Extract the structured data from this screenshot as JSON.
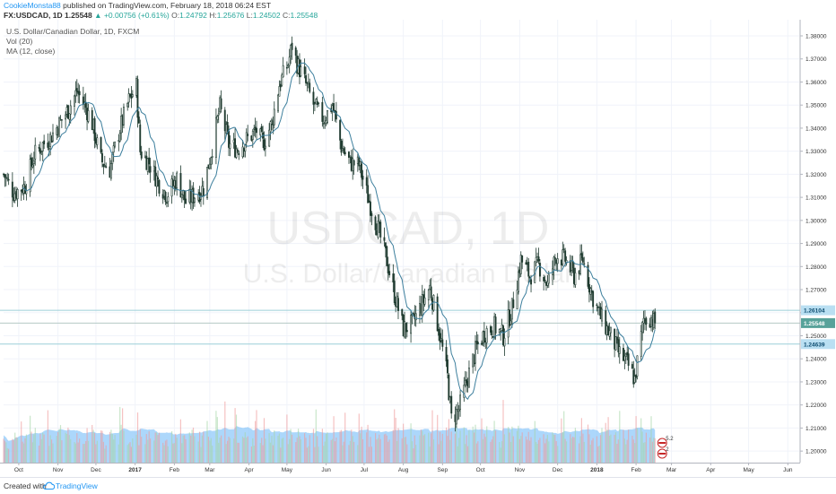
{
  "header": {
    "author": "CookieMonsta88",
    "published_text": " published on TradingView.com, February 18, 2018 06:24 EST",
    "symbol": "FX:USDCAD, 1D",
    "last": "1.25548",
    "change_arrow": "▲",
    "change": "+0.00756 (+0.61%)",
    "o_label": "O:",
    "o_value": "1.24792",
    "h_label": "H:",
    "h_value": "1.25676",
    "l_label": "L:",
    "l_value": "1.24502",
    "c_label": "C:",
    "c_value": "1.25548"
  },
  "legend": {
    "title": "U.S. Dollar/Canadian Dollar, 1D, FXCM",
    "vol": "Vol (20)",
    "ma": "MA (12, close)"
  },
  "watermark": {
    "symbol": "USDCAD, 1D",
    "name": "U.S. Dollar/Canadian Dollar"
  },
  "footer": {
    "created_with": "Created with",
    "brand": "TradingView"
  },
  "colors": {
    "up": "#26a69a",
    "down": "#ef5350",
    "candle_body": "#1e3a2f",
    "candle_up_body": "#ffffff",
    "ma": "#3d7f9d",
    "volume_area": "#90caf9",
    "volume_bar_up": "#a5d6a7",
    "volume_bar_down": "#ef9a9a",
    "hline": "#80cbc4",
    "label_cur": "#58a29a",
    "label_line": "#64b5f6"
  },
  "chart_data": {
    "type": "candlestick",
    "title": "U.S. Dollar/Canadian Dollar, 1D, FXCM",
    "y_axis": {
      "ticks": [
        "1.20000",
        "1.21000",
        "1.22000",
        "1.23000",
        "1.24000",
        "1.25000",
        "1.26000",
        "1.27000",
        "1.28000",
        "1.29000",
        "1.30000",
        "1.31000",
        "1.32000",
        "1.33000",
        "1.34000",
        "1.35000",
        "1.36000",
        "1.37000",
        "1.38000"
      ],
      "range": [
        1.195,
        1.387
      ]
    },
    "x_axis": {
      "ticks": [
        "Oct",
        "Nov",
        "Dec",
        "2017",
        "Feb",
        "Mar",
        "Apr",
        "May",
        "Jun",
        "Jul",
        "Aug",
        "Sep",
        "Oct",
        "Nov",
        "Dec",
        "2018",
        "Feb",
        "Mar",
        "Apr",
        "May",
        "Jun"
      ],
      "date_range": [
        "2016-09-19",
        "2018-06-10"
      ]
    },
    "price_labels": [
      "1.26104",
      "1.25548",
      "1.24639"
    ],
    "horizontal_lines": [
      1.26104,
      1.25548,
      1.24639
    ],
    "ma_period": 12,
    "volume_period": 20,
    "price_path": [
      [
        "2016-09-19",
        1.32
      ],
      [
        "2016-09-27",
        1.312
      ],
      [
        "2016-10-06",
        1.315
      ],
      [
        "2016-10-13",
        1.328
      ],
      [
        "2016-10-20",
        1.333
      ],
      [
        "2016-10-26",
        1.336
      ],
      [
        "2016-11-01",
        1.341
      ],
      [
        "2016-11-09",
        1.348
      ],
      [
        "2016-11-16",
        1.356
      ],
      [
        "2016-11-23",
        1.349
      ],
      [
        "2016-11-28",
        1.342
      ],
      [
        "2016-12-05",
        1.326
      ],
      [
        "2016-12-12",
        1.322
      ],
      [
        "2016-12-19",
        1.338
      ],
      [
        "2016-12-27",
        1.352
      ],
      [
        "2017-01-02",
        1.358
      ],
      [
        "2017-01-05",
        1.33
      ],
      [
        "2017-01-12",
        1.325
      ],
      [
        "2017-01-19",
        1.317
      ],
      [
        "2017-01-26",
        1.311
      ],
      [
        "2017-02-03",
        1.318
      ],
      [
        "2017-02-10",
        1.308
      ],
      [
        "2017-02-17",
        1.311
      ],
      [
        "2017-02-24",
        1.314
      ],
      [
        "2017-03-03",
        1.332
      ],
      [
        "2017-03-09",
        1.349
      ],
      [
        "2017-03-16",
        1.333
      ],
      [
        "2017-03-23",
        1.331
      ],
      [
        "2017-03-30",
        1.335
      ],
      [
        "2017-04-07",
        1.339
      ],
      [
        "2017-04-12",
        1.333
      ],
      [
        "2017-04-19",
        1.342
      ],
      [
        "2017-04-25",
        1.359
      ],
      [
        "2017-05-02",
        1.368
      ],
      [
        "2017-05-05",
        1.376
      ],
      [
        "2017-05-09",
        1.368
      ],
      [
        "2017-05-16",
        1.359
      ],
      [
        "2017-05-23",
        1.349
      ],
      [
        "2017-05-30",
        1.344
      ],
      [
        "2017-06-06",
        1.35
      ],
      [
        "2017-06-13",
        1.332
      ],
      [
        "2017-06-20",
        1.325
      ],
      [
        "2017-06-27",
        1.324
      ],
      [
        "2017-07-04",
        1.31
      ],
      [
        "2017-07-11",
        1.298
      ],
      [
        "2017-07-18",
        1.285
      ],
      [
        "2017-07-25",
        1.268
      ],
      [
        "2017-08-01",
        1.253
      ],
      [
        "2017-08-08",
        1.255
      ],
      [
        "2017-08-15",
        1.263
      ],
      [
        "2017-08-22",
        1.271
      ],
      [
        "2017-08-29",
        1.253
      ],
      [
        "2017-09-05",
        1.232
      ],
      [
        "2017-09-08",
        1.214
      ],
      [
        "2017-09-14",
        1.218
      ],
      [
        "2017-09-21",
        1.232
      ],
      [
        "2017-09-28",
        1.245
      ],
      [
        "2017-10-05",
        1.252
      ],
      [
        "2017-10-12",
        1.254
      ],
      [
        "2017-10-19",
        1.25
      ],
      [
        "2017-10-26",
        1.262
      ],
      [
        "2017-11-02",
        1.283
      ],
      [
        "2017-11-09",
        1.276
      ],
      [
        "2017-11-16",
        1.281
      ],
      [
        "2017-11-23",
        1.272
      ],
      [
        "2017-11-30",
        1.285
      ],
      [
        "2017-12-07",
        1.283
      ],
      [
        "2017-12-14",
        1.276
      ],
      [
        "2017-12-21",
        1.283
      ],
      [
        "2017-12-28",
        1.268
      ],
      [
        "2018-01-04",
        1.258
      ],
      [
        "2018-01-11",
        1.251
      ],
      [
        "2018-01-18",
        1.243
      ],
      [
        "2018-01-25",
        1.238
      ],
      [
        "2018-01-31",
        1.231
      ],
      [
        "2018-02-07",
        1.257
      ],
      [
        "2018-02-13",
        1.258
      ],
      [
        "2018-02-16",
        1.255
      ]
    ],
    "last_close": 1.25548,
    "currency_event_flags": [
      {
        "date": "2018-02-16",
        "label": "5.2"
      },
      {
        "date": "2018-02-16",
        "label": "2"
      }
    ]
  }
}
